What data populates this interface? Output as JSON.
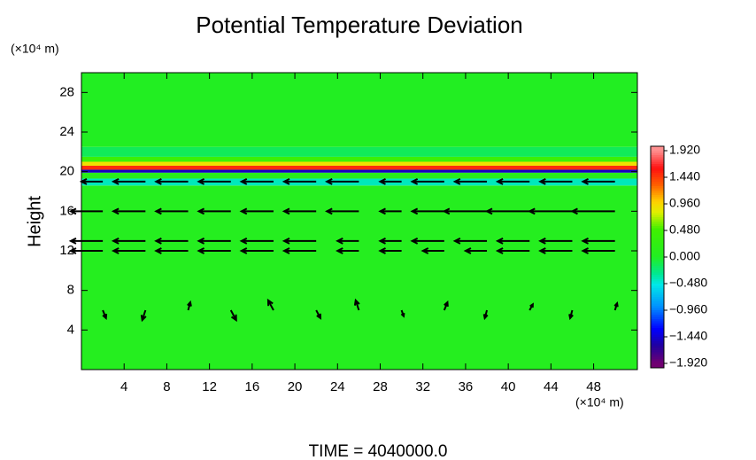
{
  "chart_data": {
    "type": "vector-field",
    "title": "Potential Temperature Deviation",
    "ylabel": "Height",
    "xunit": "(×10⁴ m)",
    "yunit": "(×10⁴ m)",
    "footer": "TIME = 4040000.0",
    "xlim": [
      0,
      52.1
    ],
    "ylim": [
      0,
      30
    ],
    "xticks": [
      4,
      8,
      12,
      16,
      20,
      24,
      28,
      32,
      36,
      40,
      44,
      48
    ],
    "yticks": [
      4,
      8,
      12,
      16,
      20,
      24,
      28
    ],
    "clim": [
      -1.92,
      1.92
    ],
    "cticks": [
      {
        "value": 1.92,
        "label": "1.920"
      },
      {
        "value": 1.44,
        "label": "1.440"
      },
      {
        "value": 0.96,
        "label": "0.960"
      },
      {
        "value": 0.48,
        "label": "0.480"
      },
      {
        "value": 0,
        "label": "0.000"
      },
      {
        "value": -0.48,
        "label": "−0.480"
      },
      {
        "value": -0.96,
        "label": "−0.960"
      },
      {
        "value": -1.44,
        "label": "−1.440"
      },
      {
        "value": -1.92,
        "label": "−1.920"
      }
    ],
    "colormap": [
      {
        "value": -1.92,
        "color": "#700070"
      },
      {
        "value": -1.6,
        "color": "#2000a0"
      },
      {
        "value": -1.3,
        "color": "#0000ff"
      },
      {
        "value": -0.9,
        "color": "#0090ff"
      },
      {
        "value": -0.5,
        "color": "#00e8e8"
      },
      {
        "value": -0.3,
        "color": "#00e890"
      },
      {
        "value": 0,
        "color": "#22ee22"
      },
      {
        "value": 0.5,
        "color": "#40f000"
      },
      {
        "value": 0.8,
        "color": "#e0f000"
      },
      {
        "value": 1.0,
        "color": "#ffd000"
      },
      {
        "value": 1.3,
        "color": "#ff6000"
      },
      {
        "value": 1.6,
        "color": "#ff1010"
      },
      {
        "value": 1.92,
        "color": "#ff9090"
      }
    ],
    "field": {
      "edges": [
        0,
        18.6,
        19.3,
        19.9,
        20.2,
        20.6,
        21.0,
        21.5,
        22.5,
        30
      ],
      "values": [
        0.05,
        -0.4,
        0.1,
        -1.5,
        1.5,
        0.9,
        0.4,
        -0.15,
        0.0
      ]
    },
    "arrow_color": "#000000",
    "vectors": {
      "x": [
        2,
        6,
        10,
        14,
        18,
        22,
        26,
        30,
        34,
        38,
        42,
        46,
        50,
        2,
        6,
        10,
        14,
        18,
        22,
        26,
        30,
        34,
        38,
        42,
        46,
        50,
        2,
        6,
        10,
        14,
        18,
        22,
        26,
        30,
        34,
        38,
        42,
        46,
        50,
        2,
        6,
        10,
        14,
        18,
        22,
        26,
        30,
        34,
        38,
        42,
        46,
        50,
        2,
        6,
        10,
        14,
        18,
        22,
        26,
        30,
        34,
        38,
        42,
        46,
        50
      ],
      "y": [
        19,
        19,
        19,
        19,
        19,
        19,
        19,
        19,
        19,
        19,
        19,
        19,
        19,
        16,
        16,
        16,
        16,
        16,
        16,
        16,
        16,
        16,
        16,
        16,
        16,
        16,
        13,
        13,
        13,
        13,
        13,
        13,
        13,
        13,
        13,
        13,
        13,
        13,
        13,
        12,
        12,
        12,
        12,
        12,
        12,
        12,
        12,
        12,
        12,
        12,
        12,
        12,
        6,
        6,
        6,
        6,
        6,
        6,
        6,
        6,
        6,
        6,
        6,
        6,
        6
      ],
      "u": [
        -2,
        -3,
        -3,
        -3,
        -3,
        -3,
        -3,
        -2,
        -3,
        -3,
        -3,
        -3,
        -3,
        -3,
        -3,
        -3,
        -3,
        -3,
        -3,
        -3,
        -2,
        -3,
        -4,
        -4,
        -4,
        -4,
        -3,
        -3,
        -3,
        -3,
        -3,
        -3,
        -2,
        -2,
        -3,
        -3,
        -3,
        -3,
        -3,
        -3,
        -3,
        -3,
        -3,
        -3,
        -3,
        -2,
        -2,
        -2,
        -2,
        -3,
        -3,
        -3,
        0.3,
        -0.3,
        0.2,
        0.5,
        -0.5,
        0.4,
        -0.3,
        0.2,
        0.3,
        -0.2,
        0.3,
        -0.2,
        0.2
      ],
      "v": [
        0,
        0,
        0,
        0,
        0,
        0,
        0,
        0,
        0,
        0,
        0,
        0,
        0,
        0,
        0,
        0,
        0,
        0,
        0,
        0,
        0,
        0,
        0,
        0,
        0,
        0,
        0,
        0,
        0,
        0,
        0,
        0,
        0,
        0,
        0,
        0,
        0,
        0,
        0,
        0,
        0,
        0,
        0,
        0,
        0,
        0,
        0,
        0,
        0,
        0,
        0,
        0,
        -0.8,
        -1,
        0.8,
        -1,
        1,
        -0.8,
        1,
        -0.6,
        0.8,
        -0.8,
        0.6,
        -0.8,
        0.7
      ]
    }
  }
}
